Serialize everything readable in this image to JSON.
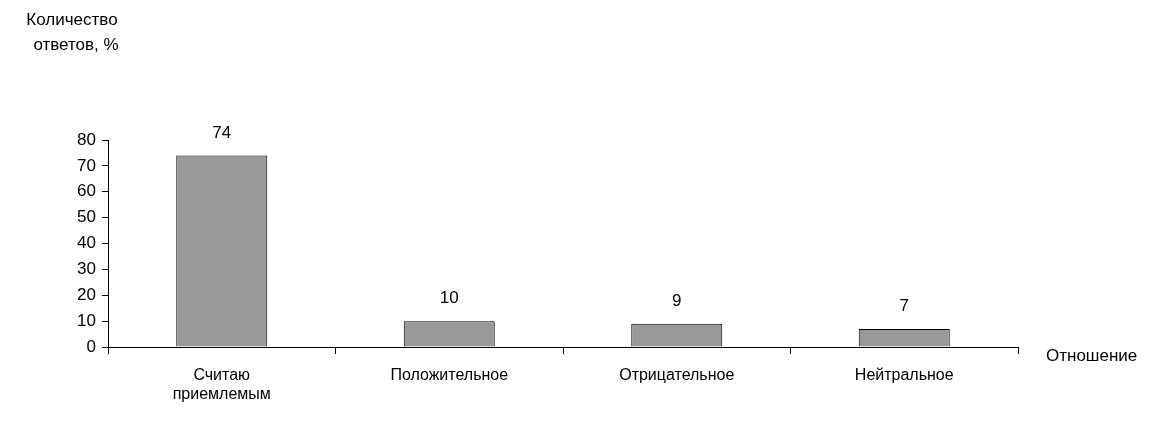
{
  "chart_data": {
    "type": "bar",
    "ylabel": "Количество ответов, %",
    "xlabel": "Отношение",
    "categories": [
      "Считаю приемлемым",
      "Положительное",
      "Отрицательное",
      "Нейтральное"
    ],
    "values": [
      74,
      10,
      9,
      7
    ],
    "color": "#999999",
    "ylim": [
      0,
      80
    ],
    "yticks": [
      0,
      10,
      20,
      30,
      40,
      50,
      60,
      70,
      80
    ],
    "data_labels": true,
    "legend": false
  }
}
